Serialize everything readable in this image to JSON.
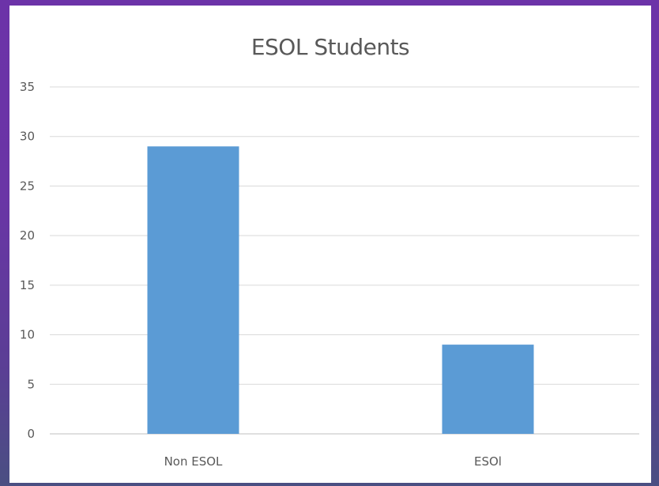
{
  "chart_data": {
    "type": "bar",
    "title": "ESOL Students",
    "categories": [
      "Non ESOL",
      "ESOl"
    ],
    "values": [
      29,
      9
    ],
    "ylim": [
      0,
      35
    ],
    "yticks": [
      0,
      5,
      10,
      15,
      20,
      25,
      30,
      35
    ],
    "xlabel": "",
    "ylabel": "",
    "grid": true,
    "legend": "none",
    "bar_color": "#5b9bd5",
    "grid_color": "#d9d9d9"
  }
}
